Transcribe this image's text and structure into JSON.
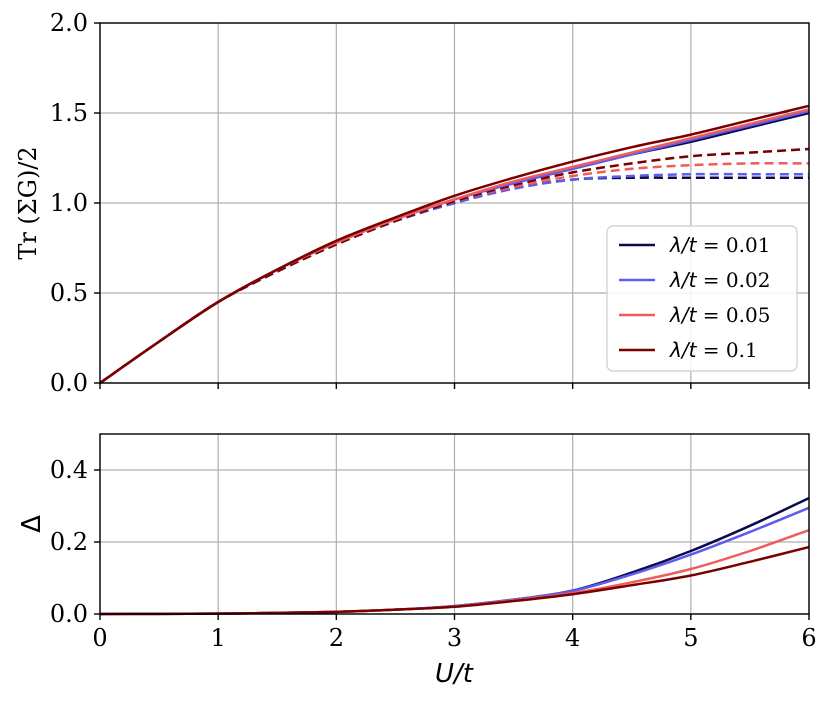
{
  "chart_data": [
    {
      "type": "line",
      "title": "",
      "xlabel": "",
      "ylabel": "Tr (ΣG)/2",
      "xlim": [
        0,
        6
      ],
      "ylim": [
        0,
        2
      ],
      "xticks": [
        "0",
        "1",
        "2",
        "3",
        "4",
        "5",
        "6"
      ],
      "yticks": [
        "0.0",
        "0.5",
        "1.0",
        "1.5",
        "2.0"
      ],
      "grid": true,
      "legend_position": "center-right",
      "x": [
        0,
        0.5,
        1,
        1.5,
        2,
        2.5,
        3,
        3.5,
        4,
        4.5,
        5,
        5.5,
        6
      ],
      "series": [
        {
          "name": "λ/t = 0.01",
          "color": "#0b0b4d",
          "style": "solid",
          "values": [
            0,
            0.23,
            0.45,
            0.63,
            0.78,
            0.91,
            1.02,
            1.11,
            1.19,
            1.27,
            1.34,
            1.42,
            1.5
          ]
        },
        {
          "name": "λ/t = 0.02",
          "color": "#5c5cf0",
          "style": "solid",
          "values": [
            0,
            0.23,
            0.45,
            0.63,
            0.78,
            0.91,
            1.02,
            1.11,
            1.19,
            1.27,
            1.35,
            1.43,
            1.51
          ]
        },
        {
          "name": "λ/t = 0.05",
          "color": "#f05c5c",
          "style": "solid",
          "values": [
            0,
            0.23,
            0.45,
            0.63,
            0.78,
            0.91,
            1.02,
            1.12,
            1.2,
            1.28,
            1.36,
            1.44,
            1.52
          ]
        },
        {
          "name": "λ/t = 0.1",
          "color": "#7a0000",
          "style": "solid",
          "values": [
            0,
            0.23,
            0.45,
            0.63,
            0.79,
            0.92,
            1.04,
            1.14,
            1.23,
            1.31,
            1.38,
            1.46,
            1.54
          ]
        },
        {
          "name": "",
          "color": "#0b0b4d",
          "style": "dashed",
          "values": [
            0,
            0.23,
            0.45,
            0.62,
            0.77,
            0.9,
            1.0,
            1.08,
            1.13,
            1.14,
            1.14,
            1.14,
            1.14
          ]
        },
        {
          "name": "",
          "color": "#5c5cf0",
          "style": "dashed",
          "values": [
            0,
            0.23,
            0.45,
            0.62,
            0.77,
            0.9,
            1.0,
            1.08,
            1.13,
            1.15,
            1.16,
            1.16,
            1.16
          ]
        },
        {
          "name": "",
          "color": "#f05c5c",
          "style": "dashed",
          "values": [
            0,
            0.23,
            0.45,
            0.62,
            0.77,
            0.9,
            1.01,
            1.09,
            1.15,
            1.19,
            1.21,
            1.22,
            1.22
          ]
        },
        {
          "name": "",
          "color": "#7a0000",
          "style": "dashed",
          "values": [
            0,
            0.23,
            0.45,
            0.62,
            0.77,
            0.9,
            1.01,
            1.1,
            1.17,
            1.22,
            1.26,
            1.28,
            1.3
          ]
        }
      ]
    },
    {
      "type": "line",
      "title": "",
      "xlabel": "U/t",
      "ylabel": "Δ",
      "xlim": [
        0,
        6
      ],
      "ylim": [
        0,
        0.5
      ],
      "xticks": [
        "0",
        "1",
        "2",
        "3",
        "4",
        "5",
        "6"
      ],
      "yticks": [
        "0.0",
        "0.2",
        "0.4"
      ],
      "grid": true,
      "x": [
        0,
        0.5,
        1,
        1.5,
        2,
        2.5,
        3,
        3.5,
        4,
        4.5,
        5,
        5.5,
        6
      ],
      "series": [
        {
          "name": "λ/t = 0.01",
          "color": "#0b0b4d",
          "style": "solid",
          "values": [
            0,
            0.0005,
            0.001,
            0.003,
            0.006,
            0.012,
            0.022,
            0.04,
            0.065,
            0.115,
            0.175,
            0.245,
            0.322
          ]
        },
        {
          "name": "λ/t = 0.02",
          "color": "#5c5cf0",
          "style": "solid",
          "values": [
            0,
            0.0005,
            0.001,
            0.003,
            0.006,
            0.012,
            0.022,
            0.04,
            0.064,
            0.11,
            0.165,
            0.228,
            0.295
          ]
        },
        {
          "name": "λ/t = 0.05",
          "color": "#f05c5c",
          "style": "solid",
          "values": [
            0,
            0.0005,
            0.001,
            0.003,
            0.006,
            0.012,
            0.021,
            0.038,
            0.058,
            0.088,
            0.125,
            0.175,
            0.233
          ]
        },
        {
          "name": "λ/t = 0.1",
          "color": "#7a0000",
          "style": "solid",
          "values": [
            0,
            0.0005,
            0.001,
            0.003,
            0.006,
            0.012,
            0.02,
            0.036,
            0.055,
            0.08,
            0.107,
            0.145,
            0.186
          ]
        }
      ]
    }
  ],
  "legend": {
    "entries": [
      {
        "lambda": "λ/t",
        "eq": " = ",
        "value": "0.01",
        "color": "#0b0b4d"
      },
      {
        "lambda": "λ/t",
        "eq": " = ",
        "value": "0.02",
        "color": "#5c5cf0"
      },
      {
        "lambda": "λ/t",
        "eq": " = ",
        "value": "0.05",
        "color": "#f05c5c"
      },
      {
        "lambda": "λ/t",
        "eq": " = ",
        "value": "0.1",
        "color": "#7a0000"
      }
    ]
  }
}
